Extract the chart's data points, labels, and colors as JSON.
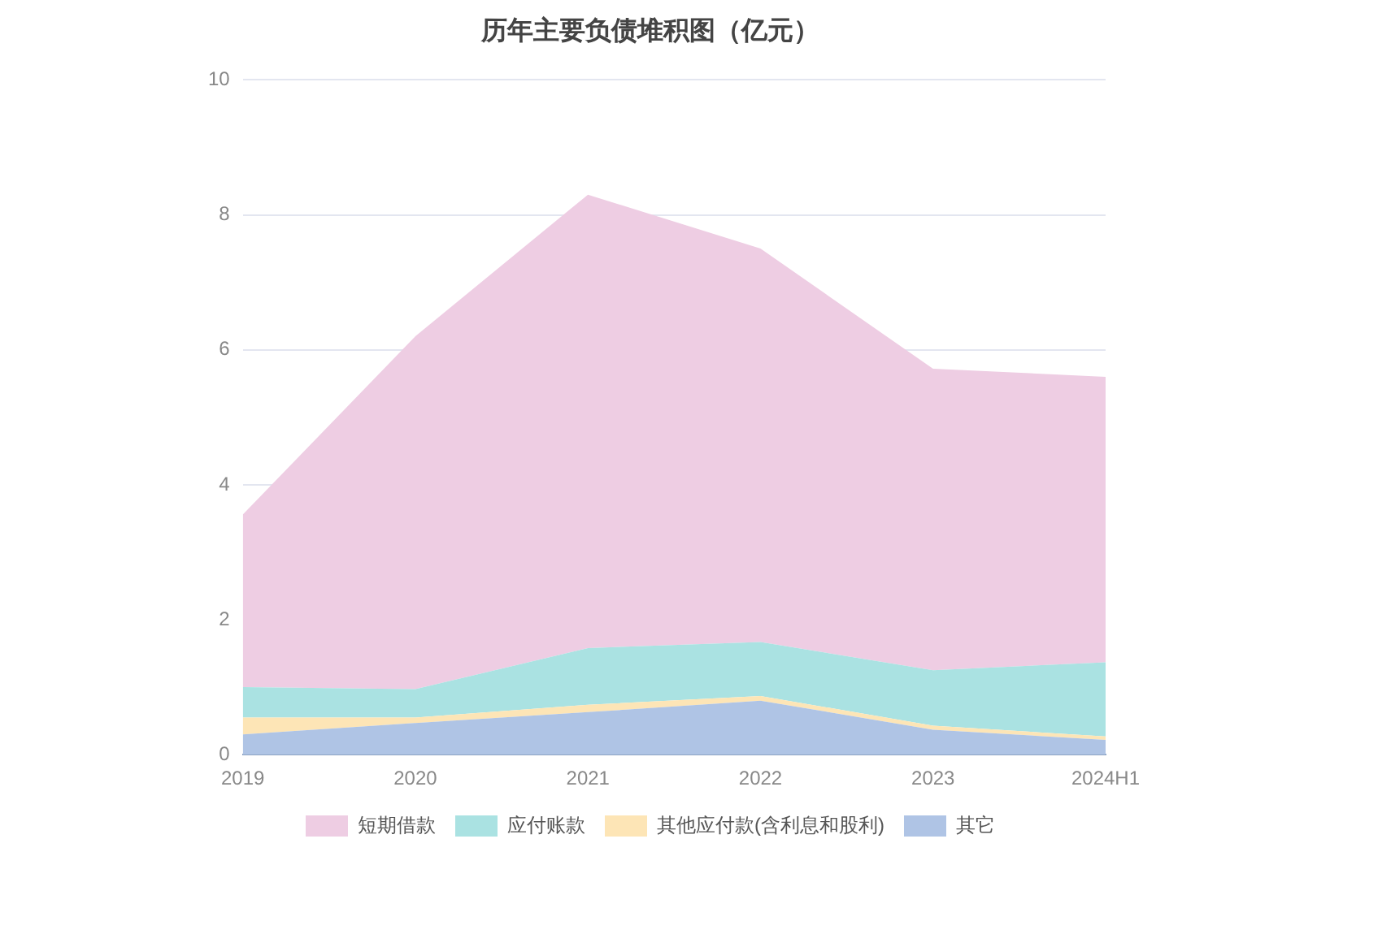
{
  "chart_data": {
    "type": "area",
    "title": "历年主要负债堆积图（亿元）",
    "categories": [
      "2019",
      "2020",
      "2021",
      "2022",
      "2023",
      "2024H1"
    ],
    "stacked": true,
    "ylim": [
      0,
      10
    ],
    "yticks": [
      0,
      2,
      4,
      6,
      8,
      10
    ],
    "grid": "y",
    "legend": "bottom",
    "series": [
      {
        "name": "其它",
        "color": "#afc4e5",
        "values": [
          0.3,
          0.47,
          0.63,
          0.8,
          0.37,
          0.22
        ]
      },
      {
        "name": "其他应付款(含利息和股利)",
        "color": "#fde5b6",
        "values": [
          0.25,
          0.08,
          0.11,
          0.07,
          0.06,
          0.05
        ]
      },
      {
        "name": "应付账款",
        "color": "#aae2e2",
        "values": [
          0.45,
          0.42,
          0.84,
          0.8,
          0.82,
          1.1
        ]
      },
      {
        "name": "短期借款",
        "color": "#eecde3",
        "values": [
          2.56,
          5.23,
          6.72,
          5.83,
          4.47,
          4.23
        ]
      }
    ]
  }
}
